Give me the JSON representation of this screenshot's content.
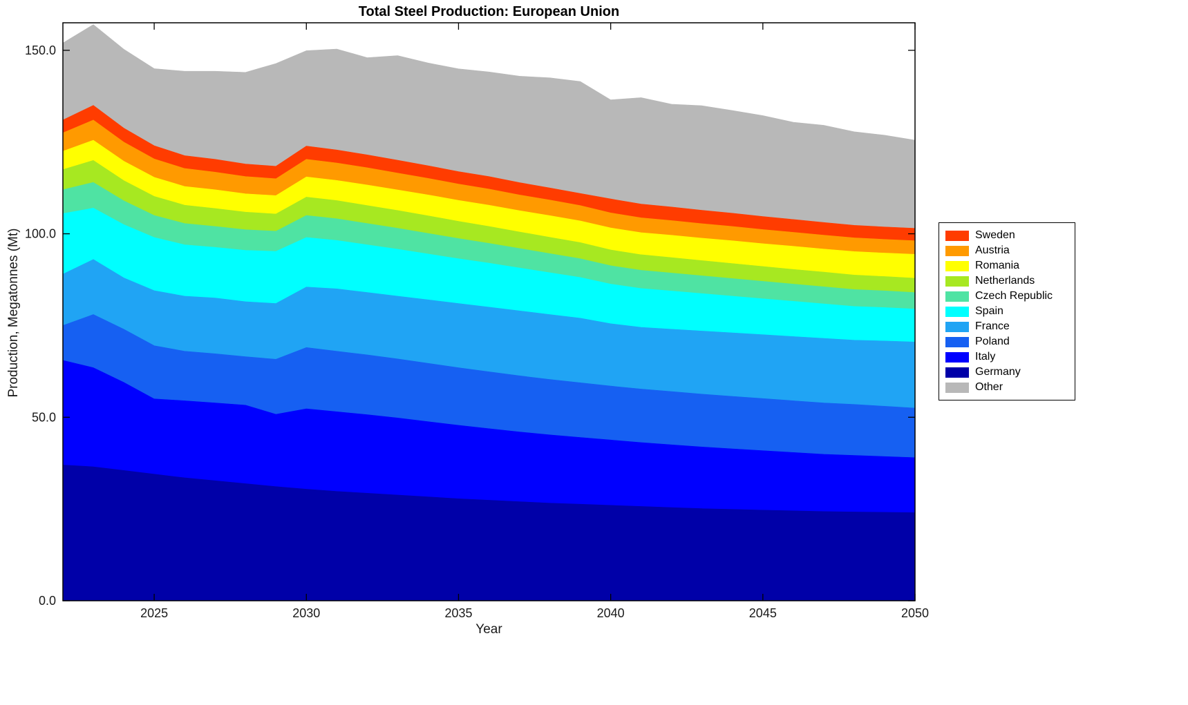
{
  "chart_data": {
    "type": "area",
    "stacked": true,
    "title": "Total Steel Production: European Union",
    "xlabel": "Year",
    "ylabel": "Production, Megatonnes (Mt)",
    "xlim": [
      2022,
      2050
    ],
    "ylim": [
      0,
      157.5
    ],
    "grid": false,
    "legend_position": "right-outside",
    "x": [
      2022,
      2023,
      2024,
      2025,
      2026,
      2027,
      2028,
      2029,
      2030,
      2031,
      2032,
      2033,
      2034,
      2035,
      2036,
      2037,
      2038,
      2039,
      2040,
      2041,
      2042,
      2043,
      2044,
      2045,
      2046,
      2047,
      2048,
      2049,
      2050
    ],
    "xticks": [
      2025,
      2030,
      2035,
      2040,
      2045,
      2050
    ],
    "xtick_labels": [
      "2025",
      "2030",
      "2035",
      "2040",
      "2045",
      "2050"
    ],
    "yticks": [
      0,
      50,
      100,
      150
    ],
    "ytick_labels": [
      "0.0",
      "50.0",
      "100.0",
      "150.0"
    ],
    "series": [
      {
        "name": "Germany",
        "color": "#0000a8",
        "values": [
          37.0,
          36.5,
          35.5,
          34.5,
          33.5,
          32.7,
          31.9,
          31.1,
          30.4,
          29.8,
          29.3,
          28.8,
          28.3,
          27.8,
          27.4,
          27.0,
          26.6,
          26.3,
          26.0,
          25.7,
          25.4,
          25.1,
          24.9,
          24.7,
          24.5,
          24.3,
          24.2,
          24.1,
          24.0
        ]
      },
      {
        "name": "Italy",
        "color": "#0000ff",
        "values": [
          28.5,
          27.0,
          24.0,
          20.5,
          21.0,
          21.2,
          21.4,
          19.7,
          21.9,
          21.7,
          21.4,
          21.0,
          20.5,
          20.0,
          19.5,
          19.0,
          18.6,
          18.2,
          17.8,
          17.4,
          17.1,
          16.8,
          16.5,
          16.2,
          15.9,
          15.6,
          15.4,
          15.2,
          15.0
        ]
      },
      {
        "name": "Poland",
        "color": "#1660f2",
        "values": [
          9.5,
          14.5,
          14.5,
          14.5,
          13.5,
          13.4,
          13.2,
          15.0,
          16.7,
          16.5,
          16.3,
          16.1,
          15.9,
          15.7,
          15.5,
          15.3,
          15.1,
          14.9,
          14.7,
          14.6,
          14.5,
          14.4,
          14.3,
          14.2,
          14.1,
          14.0,
          13.9,
          13.7,
          13.5
        ]
      },
      {
        "name": "France",
        "color": "#20a4f4",
        "values": [
          14.0,
          15.0,
          14.0,
          15.0,
          15.0,
          15.2,
          15.0,
          15.2,
          16.5,
          17.0,
          17.0,
          17.1,
          17.3,
          17.5,
          17.6,
          17.7,
          17.7,
          17.6,
          17.0,
          16.8,
          17.0,
          17.2,
          17.3,
          17.4,
          17.5,
          17.6,
          17.5,
          17.8,
          18.0
        ]
      },
      {
        "name": "Spain",
        "color": "#00ffff",
        "values": [
          16.5,
          14.0,
          14.5,
          14.5,
          14.0,
          13.8,
          14.0,
          14.2,
          13.5,
          13.2,
          13.0,
          12.8,
          12.5,
          12.2,
          12.0,
          11.7,
          11.4,
          11.1,
          10.8,
          10.6,
          10.4,
          10.2,
          10.0,
          9.8,
          9.6,
          9.4,
          9.2,
          9.1,
          9.0
        ]
      },
      {
        "name": "Czech Republic",
        "color": "#4fe3a3",
        "values": [
          6.5,
          7.0,
          6.5,
          6.0,
          5.8,
          5.7,
          5.6,
          5.5,
          6.0,
          5.9,
          5.8,
          5.7,
          5.6,
          5.5,
          5.4,
          5.3,
          5.2,
          5.1,
          5.0,
          4.95,
          4.9,
          4.85,
          4.8,
          4.75,
          4.7,
          4.65,
          4.6,
          4.55,
          4.5
        ]
      },
      {
        "name": "Netherlands",
        "color": "#a7e821",
        "values": [
          5.5,
          6.0,
          5.5,
          5.2,
          5.0,
          4.9,
          4.8,
          4.7,
          5.0,
          4.95,
          4.9,
          4.85,
          4.8,
          4.7,
          4.6,
          4.5,
          4.45,
          4.4,
          4.3,
          4.25,
          4.2,
          4.15,
          4.1,
          4.05,
          4.0,
          4.0,
          3.95,
          3.9,
          3.9
        ]
      },
      {
        "name": "Romania",
        "color": "#ffff00",
        "values": [
          5.0,
          5.5,
          5.3,
          5.2,
          5.1,
          5.1,
          5.0,
          5.0,
          5.5,
          5.5,
          5.6,
          5.6,
          5.7,
          5.7,
          5.8,
          5.8,
          5.9,
          5.9,
          6.0,
          6.0,
          6.1,
          6.1,
          6.2,
          6.2,
          6.3,
          6.3,
          6.4,
          6.4,
          6.5
        ]
      },
      {
        "name": "Austria",
        "color": "#ff9a00",
        "values": [
          5.0,
          5.5,
          5.2,
          5.0,
          4.9,
          4.8,
          4.7,
          4.6,
          4.8,
          4.75,
          4.7,
          4.6,
          4.5,
          4.45,
          4.4,
          4.3,
          4.25,
          4.2,
          4.1,
          4.05,
          4.0,
          3.95,
          3.9,
          3.85,
          3.8,
          3.78,
          3.75,
          3.72,
          3.7
        ]
      },
      {
        "name": "Sweden",
        "color": "#ff3c00",
        "values": [
          3.5,
          4.0,
          3.8,
          3.6,
          3.5,
          3.5,
          3.4,
          3.4,
          3.6,
          3.55,
          3.5,
          3.5,
          3.45,
          3.4,
          3.4,
          3.35,
          3.3,
          3.3,
          3.8,
          3.75,
          3.7,
          3.65,
          3.6,
          3.55,
          3.5,
          3.45,
          3.4,
          3.4,
          3.4
        ]
      },
      {
        "name": "Other",
        "color": "#b8b8b8",
        "values": [
          21.0,
          22.0,
          21.5,
          21.0,
          23.0,
          24.0,
          25.0,
          28.0,
          26.0,
          27.5,
          26.5,
          28.5,
          28.0,
          28.0,
          28.5,
          29.0,
          30.0,
          30.5,
          27.0,
          29.0,
          28.0,
          28.5,
          28.0,
          27.5,
          26.5,
          26.5,
          25.5,
          25.0,
          24.0
        ]
      }
    ],
    "legend_order_top_to_bottom": [
      "Sweden",
      "Austria",
      "Romania",
      "Netherlands",
      "Czech Republic",
      "Spain",
      "France",
      "Poland",
      "Italy",
      "Germany",
      "Other"
    ]
  }
}
